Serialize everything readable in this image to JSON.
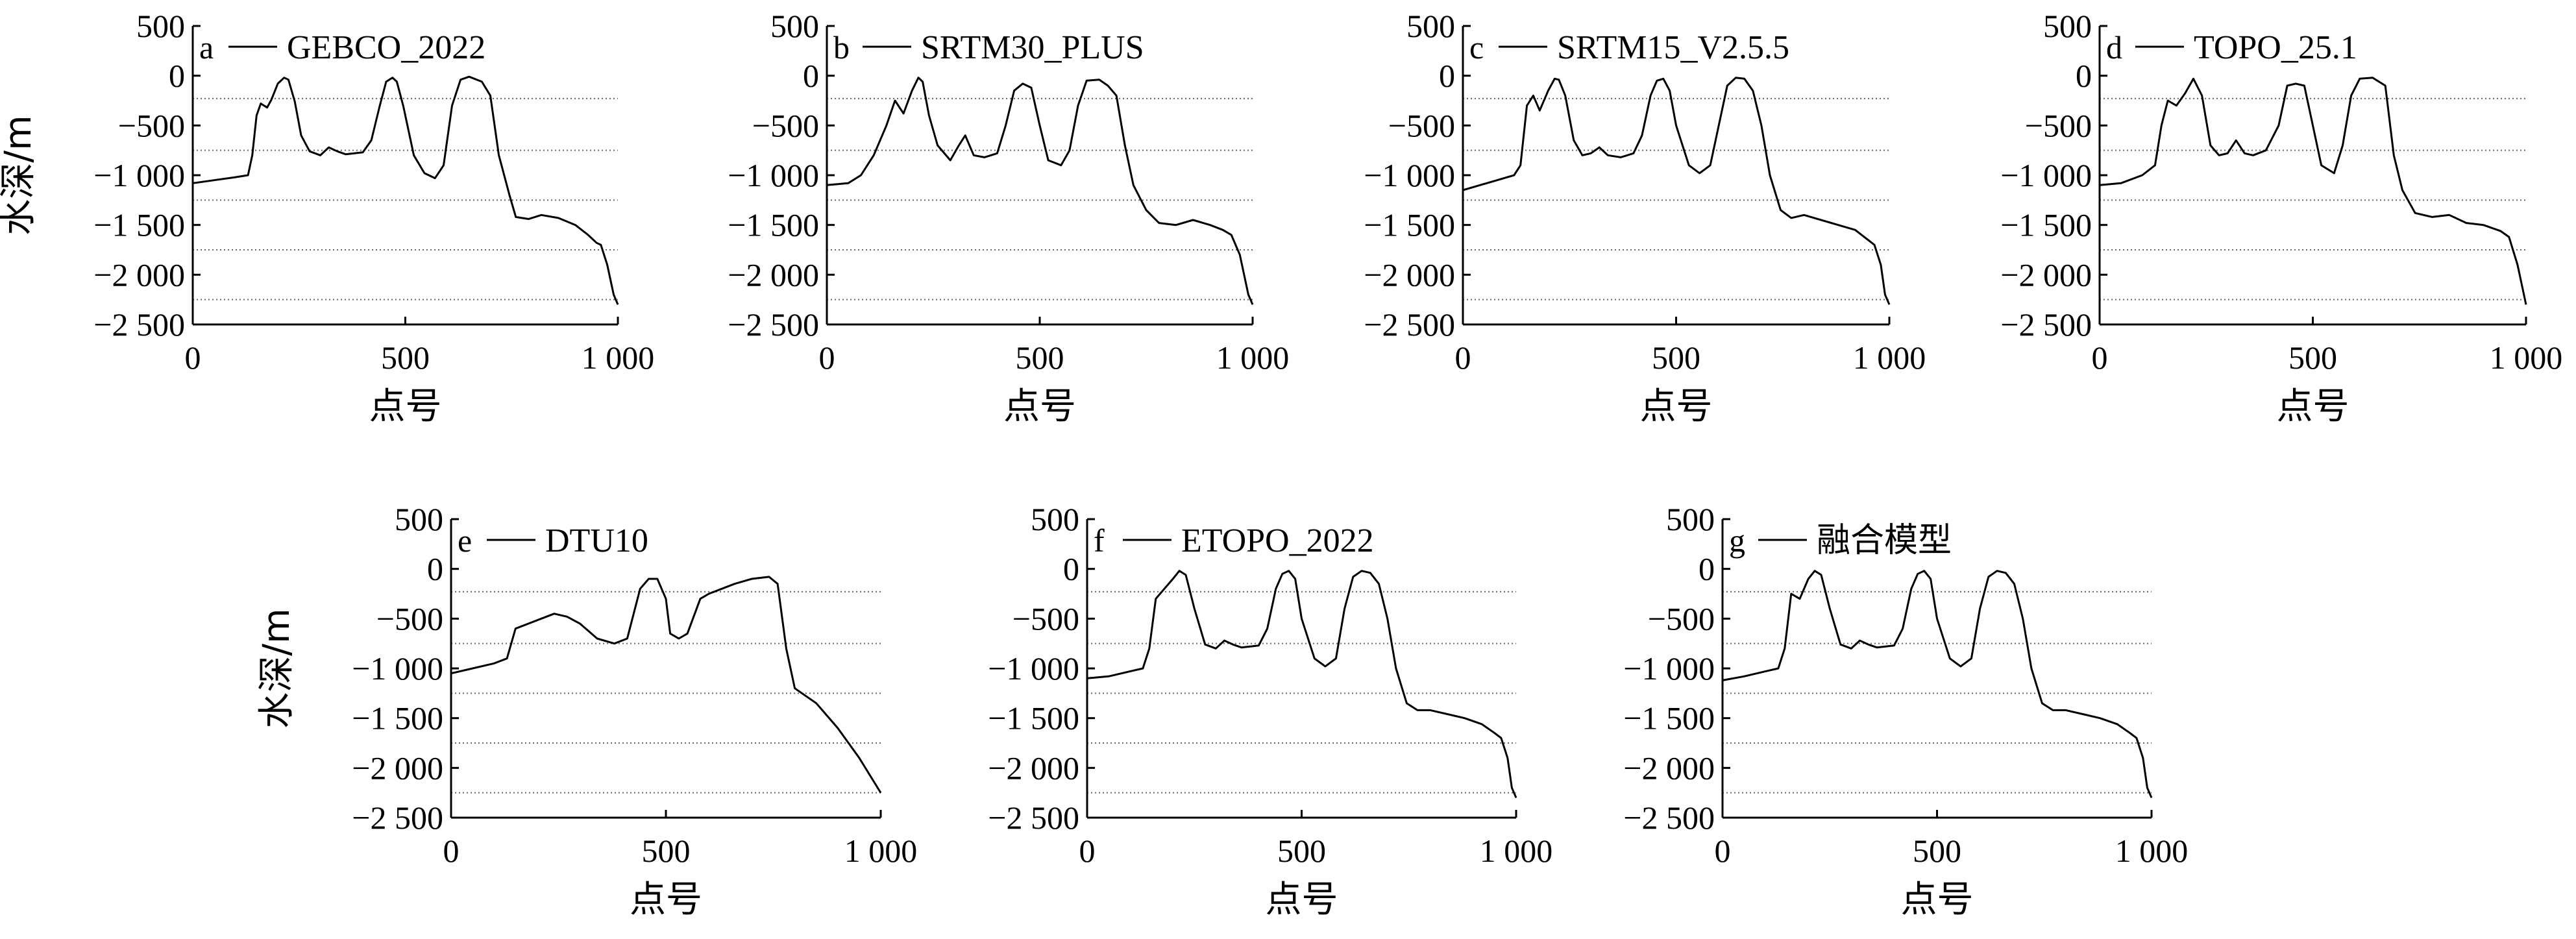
{
  "chart_data": [
    {
      "id": "a",
      "type": "line",
      "panel_label": "a",
      "legend": "GEBCO_2022",
      "xlabel": "点号",
      "ylabel": "水深/m",
      "xlim": [
        0,
        1000
      ],
      "ylim": [
        -2500,
        500
      ],
      "xticks": [
        0,
        500,
        1000
      ],
      "xtick_labels": [
        "0",
        "500",
        "1 000"
      ],
      "yticks": [
        500,
        0,
        -500,
        -1000,
        -1500,
        -2000,
        -2500
      ],
      "ytick_labels": [
        "500",
        "0",
        "−500",
        "−1 000",
        "−1 500",
        "−2 000",
        "−2 500"
      ],
      "ref_lines": [
        -230,
        -750,
        -1250,
        -1750,
        -2250
      ],
      "x": [
        0,
        50,
        100,
        130,
        140,
        150,
        160,
        175,
        185,
        200,
        215,
        225,
        240,
        255,
        275,
        300,
        320,
        340,
        360,
        400,
        420,
        440,
        455,
        470,
        480,
        495,
        520,
        545,
        570,
        590,
        610,
        630,
        650,
        680,
        700,
        720,
        745,
        760,
        790,
        820,
        860,
        900,
        930,
        950,
        960,
        975,
        990,
        1000
      ],
      "y": [
        -1080,
        -1050,
        -1020,
        -1000,
        -800,
        -400,
        -280,
        -320,
        -240,
        -80,
        -20,
        -40,
        -260,
        -600,
        -760,
        -800,
        -720,
        -760,
        -790,
        -770,
        -650,
        -300,
        -60,
        -20,
        -60,
        -300,
        -800,
        -980,
        -1030,
        -900,
        -300,
        -40,
        -10,
        -60,
        -200,
        -800,
        -1200,
        -1420,
        -1440,
        -1400,
        -1430,
        -1500,
        -1600,
        -1680,
        -1700,
        -1900,
        -2200,
        -2300
      ]
    },
    {
      "id": "b",
      "type": "line",
      "panel_label": "b",
      "legend": "SRTM30_PLUS",
      "xlabel": "点号",
      "ylabel": "",
      "xlim": [
        0,
        1000
      ],
      "ylim": [
        -2500,
        500
      ],
      "xticks": [
        0,
        500,
        1000
      ],
      "xtick_labels": [
        "0",
        "500",
        "1 000"
      ],
      "yticks": [
        500,
        0,
        -500,
        -1000,
        -1500,
        -2000,
        -2500
      ],
      "ytick_labels": [
        "500",
        "0",
        "−500",
        "−1 000",
        "−1 500",
        "−2 000",
        "−2 500"
      ],
      "ref_lines": [
        -230,
        -750,
        -1250,
        -1750,
        -2250
      ],
      "x": [
        0,
        50,
        80,
        110,
        140,
        160,
        180,
        200,
        215,
        225,
        240,
        260,
        290,
        310,
        325,
        345,
        370,
        400,
        420,
        440,
        460,
        480,
        500,
        520,
        550,
        570,
        590,
        610,
        640,
        660,
        680,
        700,
        720,
        750,
        780,
        820,
        860,
        900,
        930,
        950,
        970,
        990,
        1000
      ],
      "y": [
        -1100,
        -1080,
        -1000,
        -800,
        -500,
        -250,
        -380,
        -150,
        -20,
        -60,
        -400,
        -700,
        -850,
        -700,
        -600,
        -800,
        -820,
        -780,
        -500,
        -150,
        -80,
        -120,
        -500,
        -850,
        -900,
        -750,
        -300,
        -50,
        -40,
        -100,
        -200,
        -700,
        -1100,
        -1350,
        -1480,
        -1500,
        -1450,
        -1500,
        -1550,
        -1600,
        -1800,
        -2200,
        -2300
      ]
    },
    {
      "id": "c",
      "type": "line",
      "panel_label": "c",
      "legend": "SRTM15_V2.5.5",
      "xlabel": "点号",
      "ylabel": "",
      "xlim": [
        0,
        1000
      ],
      "ylim": [
        -2500,
        500
      ],
      "xticks": [
        0,
        500,
        1000
      ],
      "xtick_labels": [
        "0",
        "500",
        "1 000"
      ],
      "yticks": [
        500,
        0,
        -500,
        -1000,
        -1500,
        -2000,
        -2500
      ],
      "ytick_labels": [
        "500",
        "0",
        "−500",
        "−1 000",
        "−1 500",
        "−2 000",
        "−2 500"
      ],
      "ref_lines": [
        -230,
        -750,
        -1250,
        -1750,
        -2250
      ],
      "x": [
        0,
        40,
        80,
        120,
        135,
        150,
        165,
        180,
        200,
        215,
        225,
        240,
        260,
        280,
        300,
        320,
        340,
        370,
        400,
        420,
        440,
        455,
        470,
        485,
        500,
        530,
        555,
        580,
        600,
        620,
        640,
        660,
        680,
        700,
        720,
        745,
        770,
        800,
        840,
        880,
        920,
        950,
        965,
        980,
        990,
        1000
      ],
      "y": [
        -1150,
        -1100,
        -1050,
        -1000,
        -900,
        -300,
        -200,
        -350,
        -150,
        -30,
        -40,
        -200,
        -650,
        -800,
        -780,
        -720,
        -800,
        -820,
        -780,
        -600,
        -200,
        -50,
        -30,
        -150,
        -500,
        -900,
        -980,
        -900,
        -500,
        -100,
        -20,
        -30,
        -150,
        -500,
        -1000,
        -1350,
        -1430,
        -1400,
        -1450,
        -1500,
        -1550,
        -1650,
        -1700,
        -1900,
        -2200,
        -2300
      ]
    },
    {
      "id": "d",
      "type": "line",
      "panel_label": "d",
      "legend": "TOPO_25.1",
      "xlabel": "点号",
      "ylabel": "",
      "xlim": [
        0,
        1000
      ],
      "ylim": [
        -2500,
        500
      ],
      "xticks": [
        0,
        500,
        1000
      ],
      "xtick_labels": [
        "0",
        "500",
        "1 000"
      ],
      "yticks": [
        500,
        0,
        -500,
        -1000,
        -1500,
        -2000,
        -2500
      ],
      "ytick_labels": [
        "500",
        "0",
        "−500",
        "−1 000",
        "−1 500",
        "−2 000",
        "−2 500"
      ],
      "ref_lines": [
        -230,
        -750,
        -1250,
        -1750,
        -2250
      ],
      "x": [
        0,
        50,
        100,
        130,
        145,
        160,
        180,
        200,
        220,
        240,
        260,
        280,
        300,
        320,
        340,
        360,
        390,
        420,
        440,
        460,
        480,
        500,
        520,
        550,
        570,
        590,
        610,
        640,
        670,
        690,
        710,
        740,
        780,
        820,
        860,
        900,
        940,
        960,
        980,
        1000
      ],
      "y": [
        -1100,
        -1080,
        -1000,
        -900,
        -500,
        -250,
        -300,
        -180,
        -30,
        -200,
        -700,
        -800,
        -780,
        -650,
        -780,
        -800,
        -750,
        -500,
        -100,
        -80,
        -100,
        -500,
        -900,
        -980,
        -700,
        -200,
        -30,
        -20,
        -100,
        -800,
        -1150,
        -1380,
        -1420,
        -1400,
        -1480,
        -1500,
        -1560,
        -1620,
        -1900,
        -2300
      ]
    },
    {
      "id": "e",
      "type": "line",
      "panel_label": "e",
      "legend": "DTU10",
      "xlabel": "点号",
      "ylabel": "水深/m",
      "xlim": [
        0,
        1000
      ],
      "ylim": [
        -2500,
        500
      ],
      "xticks": [
        0,
        500,
        1000
      ],
      "xtick_labels": [
        "0",
        "500",
        "1 000"
      ],
      "yticks": [
        500,
        0,
        -500,
        -1000,
        -1500,
        -2000,
        -2500
      ],
      "ytick_labels": [
        "500",
        "0",
        "−500",
        "−1 000",
        "−1 500",
        "−2 000",
        "−2 500"
      ],
      "ref_lines": [
        -230,
        -750,
        -1250,
        -1750,
        -2250
      ],
      "x": [
        0,
        50,
        100,
        130,
        150,
        180,
        210,
        240,
        270,
        300,
        340,
        380,
        410,
        440,
        460,
        480,
        500,
        510,
        530,
        550,
        580,
        600,
        630,
        660,
        700,
        740,
        760,
        780,
        800,
        850,
        900,
        950,
        1000
      ],
      "y": [
        -1050,
        -1000,
        -950,
        -900,
        -600,
        -550,
        -500,
        -450,
        -480,
        -550,
        -700,
        -750,
        -700,
        -200,
        -100,
        -100,
        -300,
        -650,
        -700,
        -650,
        -300,
        -250,
        -200,
        -150,
        -100,
        -80,
        -150,
        -800,
        -1200,
        -1350,
        -1600,
        -1900,
        -2250
      ]
    },
    {
      "id": "f",
      "type": "line",
      "panel_label": "f",
      "legend": "ETOPO_2022",
      "xlabel": "点号",
      "ylabel": "",
      "xlim": [
        0,
        1000
      ],
      "ylim": [
        -2500,
        500
      ],
      "xticks": [
        0,
        500,
        1000
      ],
      "xtick_labels": [
        "0",
        "500",
        "1 000"
      ],
      "yticks": [
        500,
        0,
        -500,
        -1000,
        -1500,
        -2000,
        -2500
      ],
      "ytick_labels": [
        "500",
        "0",
        "−500",
        "−1 000",
        "−1 500",
        "−2 000",
        "−2 500"
      ],
      "ref_lines": [
        -230,
        -750,
        -1250,
        -1750,
        -2250
      ],
      "x": [
        0,
        50,
        100,
        130,
        145,
        160,
        180,
        200,
        215,
        230,
        250,
        275,
        300,
        320,
        340,
        360,
        400,
        420,
        440,
        455,
        470,
        485,
        500,
        530,
        555,
        580,
        600,
        620,
        640,
        660,
        680,
        700,
        720,
        745,
        770,
        800,
        840,
        880,
        920,
        950,
        965,
        980,
        990,
        1000
      ],
      "y": [
        -1100,
        -1080,
        -1030,
        -1000,
        -800,
        -300,
        -200,
        -100,
        -20,
        -60,
        -400,
        -760,
        -800,
        -720,
        -760,
        -790,
        -770,
        -600,
        -200,
        -50,
        -20,
        -100,
        -500,
        -900,
        -980,
        -900,
        -400,
        -80,
        -20,
        -40,
        -150,
        -500,
        -1000,
        -1350,
        -1420,
        -1420,
        -1460,
        -1500,
        -1560,
        -1650,
        -1700,
        -1900,
        -2200,
        -2300
      ]
    },
    {
      "id": "g",
      "type": "line",
      "panel_label": "g",
      "legend": "融合模型",
      "xlabel": "点号",
      "ylabel": "",
      "xlim": [
        0,
        1000
      ],
      "ylim": [
        -2500,
        500
      ],
      "xticks": [
        0,
        500,
        1000
      ],
      "xtick_labels": [
        "0",
        "500",
        "1 000"
      ],
      "yticks": [
        500,
        0,
        -500,
        -1000,
        -1500,
        -2000,
        -2500
      ],
      "ytick_labels": [
        "500",
        "0",
        "−500",
        "−1 000",
        "−1 500",
        "−2 000",
        "−2 500"
      ],
      "ref_lines": [
        -230,
        -750,
        -1250,
        -1750,
        -2250
      ],
      "x": [
        0,
        50,
        100,
        130,
        145,
        160,
        180,
        200,
        215,
        230,
        250,
        275,
        300,
        320,
        340,
        360,
        400,
        420,
        440,
        455,
        470,
        485,
        500,
        530,
        555,
        580,
        600,
        620,
        640,
        660,
        680,
        700,
        720,
        745,
        770,
        800,
        840,
        880,
        920,
        950,
        965,
        980,
        990,
        1000
      ],
      "y": [
        -1120,
        -1080,
        -1030,
        -1000,
        -800,
        -250,
        -300,
        -100,
        -20,
        -60,
        -400,
        -760,
        -800,
        -720,
        -760,
        -790,
        -770,
        -600,
        -200,
        -50,
        -20,
        -100,
        -500,
        -900,
        -980,
        -900,
        -400,
        -80,
        -20,
        -40,
        -150,
        -500,
        -1000,
        -1350,
        -1420,
        -1420,
        -1460,
        -1500,
        -1560,
        -1650,
        -1700,
        -1900,
        -2200,
        -2300
      ]
    }
  ],
  "colors": {
    "line": "#000000",
    "axis": "#000000",
    "ref_line": "#666666"
  }
}
